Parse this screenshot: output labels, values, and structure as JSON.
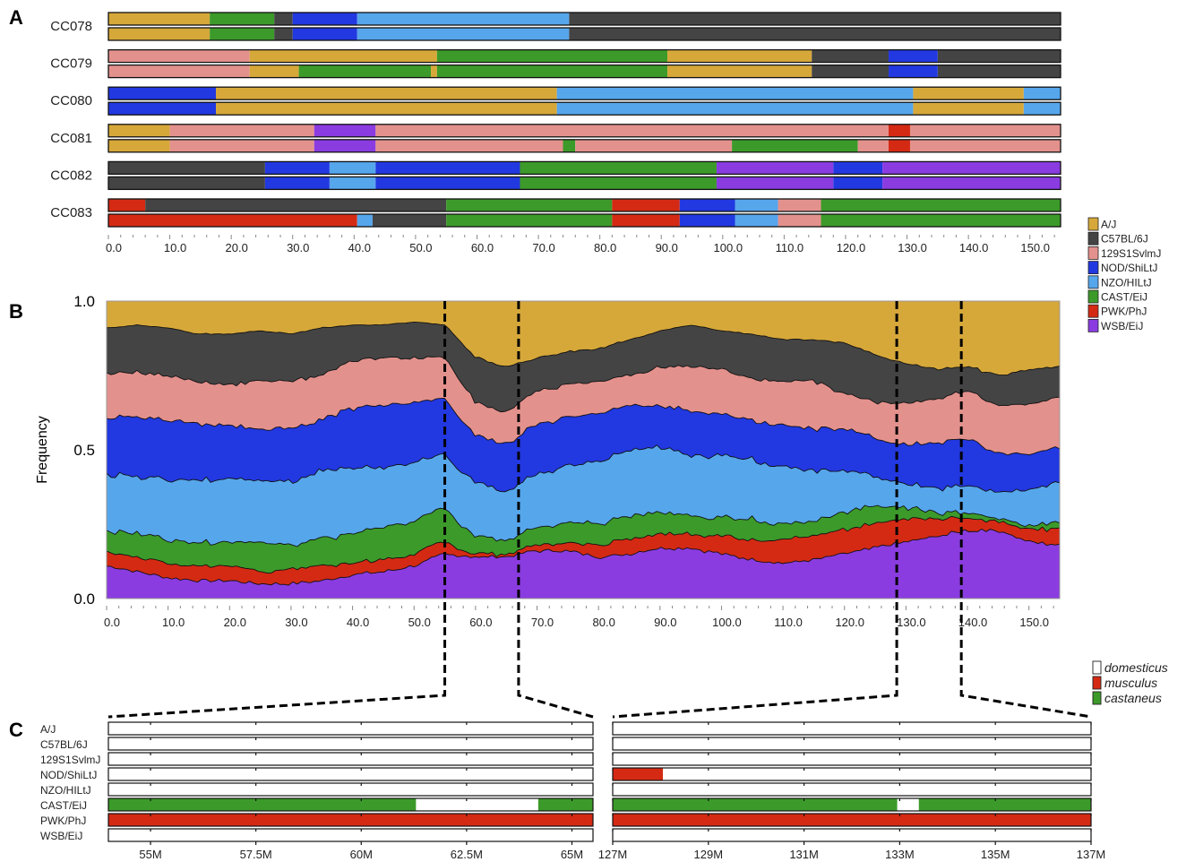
{
  "panel_labels": {
    "a": "A",
    "b": "B",
    "c": "C"
  },
  "colors": {
    "A/J": "#d6a83a",
    "C57BL/6J": "#444444",
    "129S1SvImJ": "#e3918d",
    "NOD/ShiLtJ": "#2238e0",
    "NZO/HILtJ": "#56a6ec",
    "CAST/EiJ": "#3c9a2a",
    "PWK/PhJ": "#d42a14",
    "WSB/EiJ": "#8a3ce0",
    "domesticus": "#ffffff",
    "musculus": "#d42a14",
    "castaneus": "#3c9a2a"
  },
  "chart_data": [
    {
      "type": "bar",
      "panel": "A",
      "x_unit": "cM",
      "xlim": [
        0,
        155
      ],
      "xticks": [
        "0.0",
        "10.0",
        "20.0",
        "30.0",
        "40.0",
        "50.0",
        "60.0",
        "70.0",
        "80.0",
        "90.0",
        "100.0",
        "110.0",
        "120.0",
        "130.0",
        "140.0",
        "150.0"
      ],
      "strains": [
        {
          "name": "CC078",
          "haplotypes": [
            [
              [
                0,
                "A/J"
              ],
              [
                16.5,
                "CAST/EiJ"
              ],
              [
                27,
                "C57BL/6J"
              ],
              [
                30,
                "NOD/ShiLtJ"
              ],
              [
                40.5,
                "NZO/HILtJ"
              ],
              [
                75,
                "C57BL/6J"
              ]
            ],
            [
              [
                0,
                "A/J"
              ],
              [
                16.5,
                "CAST/EiJ"
              ],
              [
                27,
                "C57BL/6J"
              ],
              [
                30,
                "NOD/ShiLtJ"
              ],
              [
                40.5,
                "NZO/HILtJ"
              ],
              [
                75,
                "C57BL/6J"
              ]
            ]
          ]
        },
        {
          "name": "CC079",
          "haplotypes": [
            [
              [
                0,
                "129S1SvImJ"
              ],
              [
                23,
                "A/J"
              ],
              [
                53.5,
                "CAST/EiJ"
              ],
              [
                91,
                "A/J"
              ],
              [
                114.5,
                "C57BL/6J"
              ],
              [
                127,
                "NOD/ShiLtJ"
              ],
              [
                135,
                "C57BL/6J"
              ]
            ],
            [
              [
                0,
                "129S1SvImJ"
              ],
              [
                23,
                "A/J"
              ],
              [
                31,
                "CAST/EiJ"
              ],
              [
                52.5,
                "A/J"
              ],
              [
                53.5,
                "CAST/EiJ"
              ],
              [
                91,
                "A/J"
              ],
              [
                114.5,
                "C57BL/6J"
              ],
              [
                127,
                "NOD/ShiLtJ"
              ],
              [
                135,
                "C57BL/6J"
              ]
            ]
          ]
        },
        {
          "name": "CC080",
          "haplotypes": [
            [
              [
                0,
                "NOD/ShiLtJ"
              ],
              [
                17.5,
                "A/J"
              ],
              [
                73,
                "NZO/HILtJ"
              ],
              [
                131,
                "A/J"
              ],
              [
                149,
                "NZO/HILtJ"
              ]
            ],
            [
              [
                0,
                "NOD/ShiLtJ"
              ],
              [
                17.5,
                "A/J"
              ],
              [
                73,
                "NZO/HILtJ"
              ],
              [
                131,
                "A/J"
              ],
              [
                149,
                "NZO/HILtJ"
              ]
            ]
          ]
        },
        {
          "name": "CC081",
          "haplotypes": [
            [
              [
                0,
                "A/J"
              ],
              [
                10,
                "129S1SvImJ"
              ],
              [
                33.5,
                "WSB/EiJ"
              ],
              [
                43.5,
                "129S1SvImJ"
              ],
              [
                127,
                "PWK/PhJ"
              ],
              [
                130.5,
                "129S1SvImJ"
              ]
            ],
            [
              [
                0,
                "A/J"
              ],
              [
                10,
                "129S1SvImJ"
              ],
              [
                33.5,
                "WSB/EiJ"
              ],
              [
                43.5,
                "129S1SvImJ"
              ],
              [
                74,
                "CAST/EiJ"
              ],
              [
                76,
                "129S1SvImJ"
              ],
              [
                101.5,
                "CAST/EiJ"
              ],
              [
                122,
                "129S1SvImJ"
              ],
              [
                127,
                "PWK/PhJ"
              ],
              [
                130.5,
                "129S1SvImJ"
              ]
            ]
          ]
        },
        {
          "name": "CC082",
          "haplotypes": [
            [
              [
                0,
                "C57BL/6J"
              ],
              [
                25.5,
                "NOD/ShiLtJ"
              ],
              [
                36,
                "NZO/HILtJ"
              ],
              [
                43.5,
                "NOD/ShiLtJ"
              ],
              [
                67,
                "CAST/EiJ"
              ],
              [
                99,
                "WSB/EiJ"
              ],
              [
                118,
                "NOD/ShiLtJ"
              ],
              [
                126,
                "WSB/EiJ"
              ]
            ],
            [
              [
                0,
                "C57BL/6J"
              ],
              [
                25.5,
                "NOD/ShiLtJ"
              ],
              [
                36,
                "NZO/HILtJ"
              ],
              [
                43.5,
                "NOD/ShiLtJ"
              ],
              [
                67,
                "CAST/EiJ"
              ],
              [
                99,
                "WSB/EiJ"
              ],
              [
                118,
                "NOD/ShiLtJ"
              ],
              [
                126,
                "WSB/EiJ"
              ]
            ]
          ]
        },
        {
          "name": "CC083",
          "haplotypes": [
            [
              [
                0,
                "PWK/PhJ"
              ],
              [
                6,
                "C57BL/6J"
              ],
              [
                55,
                "CAST/EiJ"
              ],
              [
                82,
                "PWK/PhJ"
              ],
              [
                93,
                "NOD/ShiLtJ"
              ],
              [
                102,
                "NZO/HILtJ"
              ],
              [
                109,
                "129S1SvImJ"
              ],
              [
                116,
                "CAST/EiJ"
              ]
            ],
            [
              [
                0,
                "PWK/PhJ"
              ],
              [
                40.5,
                "NZO/HILtJ"
              ],
              [
                43,
                "C57BL/6J"
              ],
              [
                55,
                "CAST/EiJ"
              ],
              [
                82,
                "PWK/PhJ"
              ],
              [
                93,
                "NOD/ShiLtJ"
              ],
              [
                102,
                "NZO/HILtJ"
              ],
              [
                109,
                "129S1SvImJ"
              ],
              [
                116,
                "CAST/EiJ"
              ]
            ]
          ]
        }
      ],
      "legend": [
        "A/J",
        "C57BL/6J",
        "129S1SvImJ",
        "NOD/ShiLtJ",
        "NZO/HILtJ",
        "CAST/EiJ",
        "PWK/PhJ",
        "WSB/EiJ"
      ],
      "legend_labels": [
        "A/J",
        "C57BL/6J",
        "129S1SvlmJ",
        "NOD/ShiLtJ",
        "NZO/HILtJ",
        "CAST/EiJ",
        "PWK/PhJ",
        "WSB/EiJ"
      ],
      "legend_position": "right"
    },
    {
      "type": "area",
      "panel": "B",
      "stacking": "cumulative",
      "ylabel": "Frequency",
      "ylim": [
        0,
        1
      ],
      "yticks": [
        "0.0",
        "0.5",
        "1.0"
      ],
      "xlim": [
        0,
        155
      ],
      "xticks": [
        "0.0",
        "10.0",
        "20.0",
        "30.0",
        "40.0",
        "50.0",
        "60.0",
        "70.0",
        "80.0",
        "90.0",
        "100.0",
        "110.0",
        "120.0",
        "130.0",
        "140.0",
        "150.0"
      ],
      "x": [
        0,
        5,
        10,
        15,
        20,
        25,
        30,
        35,
        40,
        45,
        50,
        55,
        60,
        65,
        70,
        75,
        80,
        85,
        90,
        95,
        100,
        105,
        110,
        115,
        120,
        125,
        130,
        135,
        140,
        145,
        150,
        155
      ],
      "series": [
        {
          "name": "WSB/EiJ",
          "values": [
            0.11,
            0.09,
            0.07,
            0.06,
            0.06,
            0.05,
            0.05,
            0.06,
            0.08,
            0.09,
            0.11,
            0.15,
            0.14,
            0.14,
            0.16,
            0.16,
            0.14,
            0.15,
            0.17,
            0.17,
            0.15,
            0.13,
            0.12,
            0.13,
            0.15,
            0.17,
            0.19,
            0.21,
            0.23,
            0.23,
            0.19,
            0.18
          ]
        },
        {
          "name": "PWK/PhJ",
          "values": [
            0.05,
            0.05,
            0.05,
            0.05,
            0.05,
            0.04,
            0.05,
            0.05,
            0.04,
            0.04,
            0.04,
            0.04,
            0.01,
            0.01,
            0.02,
            0.03,
            0.04,
            0.05,
            0.05,
            0.05,
            0.06,
            0.07,
            0.08,
            0.08,
            0.08,
            0.08,
            0.08,
            0.06,
            0.04,
            0.03,
            0.04,
            0.06
          ]
        },
        {
          "name": "CAST/EiJ",
          "values": [
            0.07,
            0.08,
            0.08,
            0.08,
            0.08,
            0.1,
            0.08,
            0.09,
            0.1,
            0.11,
            0.11,
            0.11,
            0.06,
            0.05,
            0.06,
            0.07,
            0.07,
            0.08,
            0.07,
            0.06,
            0.06,
            0.07,
            0.05,
            0.05,
            0.06,
            0.06,
            0.04,
            0.02,
            0.02,
            0.01,
            0.01,
            0.02
          ]
        },
        {
          "name": "NZO/HILtJ",
          "values": [
            0.19,
            0.19,
            0.2,
            0.21,
            0.21,
            0.21,
            0.21,
            0.23,
            0.22,
            0.2,
            0.2,
            0.18,
            0.18,
            0.16,
            0.18,
            0.19,
            0.21,
            0.22,
            0.22,
            0.2,
            0.21,
            0.2,
            0.19,
            0.17,
            0.14,
            0.1,
            0.08,
            0.08,
            0.09,
            0.09,
            0.12,
            0.13
          ]
        },
        {
          "name": "NOD/ShiLtJ",
          "values": [
            0.19,
            0.2,
            0.2,
            0.19,
            0.18,
            0.17,
            0.18,
            0.17,
            0.2,
            0.21,
            0.2,
            0.19,
            0.16,
            0.16,
            0.17,
            0.16,
            0.16,
            0.15,
            0.14,
            0.15,
            0.14,
            0.13,
            0.14,
            0.14,
            0.14,
            0.13,
            0.13,
            0.15,
            0.16,
            0.13,
            0.12,
            0.12
          ]
        },
        {
          "name": "129S1SvImJ",
          "values": [
            0.15,
            0.15,
            0.15,
            0.14,
            0.14,
            0.16,
            0.16,
            0.15,
            0.16,
            0.16,
            0.15,
            0.14,
            0.11,
            0.11,
            0.11,
            0.11,
            0.11,
            0.1,
            0.13,
            0.15,
            0.15,
            0.14,
            0.15,
            0.16,
            0.12,
            0.12,
            0.14,
            0.15,
            0.16,
            0.16,
            0.17,
            0.17
          ]
        },
        {
          "name": "C57BL/6J",
          "values": [
            0.15,
            0.16,
            0.16,
            0.16,
            0.17,
            0.17,
            0.16,
            0.16,
            0.12,
            0.11,
            0.12,
            0.11,
            0.15,
            0.15,
            0.11,
            0.11,
            0.11,
            0.12,
            0.12,
            0.14,
            0.13,
            0.15,
            0.14,
            0.14,
            0.17,
            0.16,
            0.13,
            0.1,
            0.08,
            0.1,
            0.12,
            0.1
          ]
        },
        {
          "name": "A/J",
          "values": [
            0.09,
            0.08,
            0.09,
            0.11,
            0.11,
            0.1,
            0.11,
            0.09,
            0.08,
            0.08,
            0.07,
            0.08,
            0.19,
            0.22,
            0.19,
            0.17,
            0.16,
            0.13,
            0.1,
            0.08,
            0.1,
            0.11,
            0.13,
            0.13,
            0.14,
            0.18,
            0.21,
            0.23,
            0.22,
            0.25,
            0.23,
            0.22
          ]
        }
      ],
      "highlight_positions": [
        55,
        67,
        128.5,
        139
      ]
    },
    {
      "type": "bar",
      "panel": "C",
      "rows": [
        "A/J",
        "C57BL/6J",
        "129S1SvlmJ",
        "NOD/ShiLtJ",
        "NZO/HILtJ",
        "CAST/EiJ",
        "PWK/PhJ",
        "WSB/EiJ"
      ],
      "left_region": {
        "xlim": [
          54,
          65.5
        ],
        "xticks": [
          "55M",
          "57.5M",
          "60M",
          "62.5M",
          "65M"
        ],
        "segments": [
          [
            [
              54,
              65.5,
              "domesticus"
            ]
          ],
          [
            [
              54,
              65.5,
              "domesticus"
            ]
          ],
          [
            [
              54,
              65.5,
              "domesticus"
            ]
          ],
          [
            [
              54,
              65.5,
              "domesticus"
            ]
          ],
          [
            [
              54,
              65.5,
              "domesticus"
            ]
          ],
          [
            [
              54,
              61.3,
              "castaneus"
            ],
            [
              61.3,
              64.2,
              "domesticus"
            ],
            [
              64.2,
              65.5,
              "castaneus"
            ]
          ],
          [
            [
              54,
              65.5,
              "musculus"
            ]
          ],
          [
            [
              54,
              65.5,
              "domesticus"
            ]
          ]
        ]
      },
      "right_region": {
        "xlim": [
          127,
          137
        ],
        "xticks": [
          "127M",
          "129M",
          "131M",
          "133M",
          "135M",
          "137M"
        ],
        "segments": [
          [
            [
              127,
              137,
              "domesticus"
            ]
          ],
          [
            [
              127,
              137,
              "domesticus"
            ]
          ],
          [
            [
              127,
              137,
              "domesticus"
            ]
          ],
          [
            [
              127,
              128.05,
              "musculus"
            ],
            [
              128.05,
              137,
              "domesticus"
            ]
          ],
          [
            [
              127,
              137,
              "domesticus"
            ]
          ],
          [
            [
              127,
              132.95,
              "castaneus"
            ],
            [
              132.95,
              133.4,
              "domesticus"
            ],
            [
              133.4,
              137,
              "castaneus"
            ]
          ],
          [
            [
              127,
              137,
              "musculus"
            ]
          ],
          [
            [
              127,
              137,
              "domesticus"
            ]
          ]
        ]
      },
      "legend": [
        "domesticus",
        "musculus",
        "castaneus"
      ],
      "legend_position": "top-right"
    }
  ]
}
